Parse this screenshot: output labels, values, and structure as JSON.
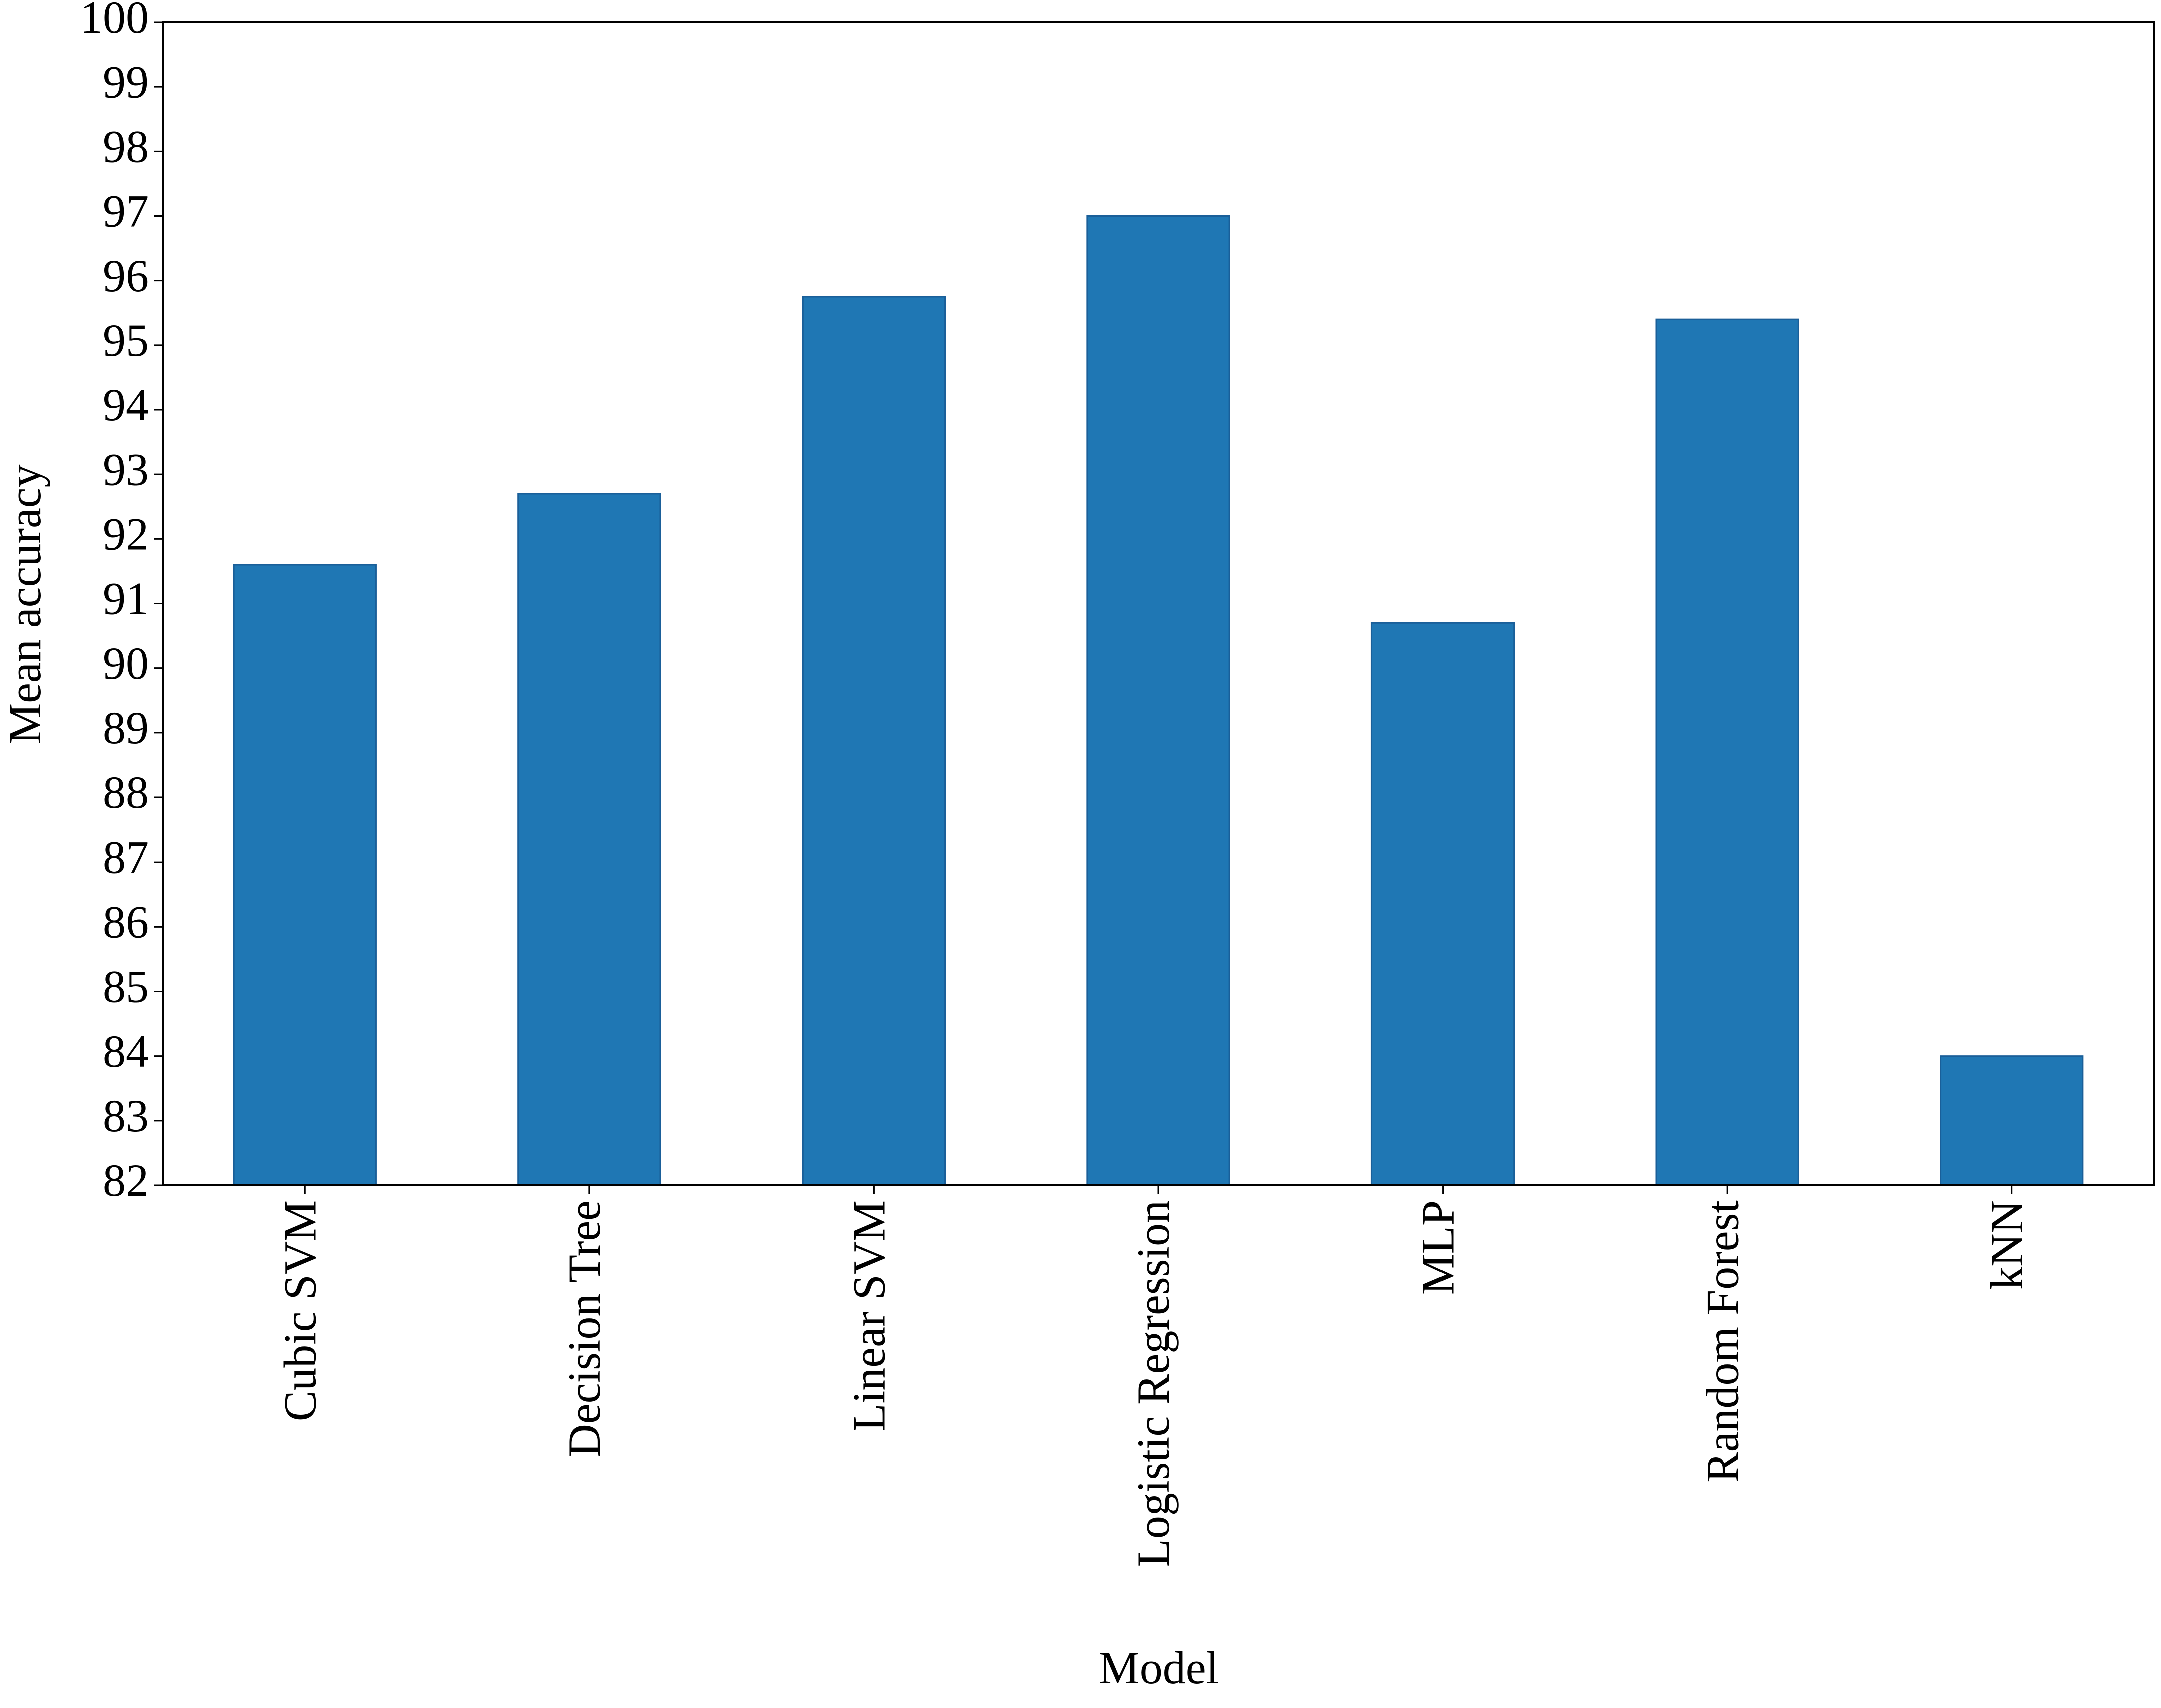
{
  "chart_data": {
    "type": "bar",
    "categories": [
      "Cubic SVM",
      "Decision Tree",
      "Linear SVM",
      "Logistic Regression",
      "MLP",
      "Random Forest",
      "kNN"
    ],
    "values": [
      91.6,
      92.7,
      95.75,
      97.0,
      90.7,
      95.4,
      84.0
    ],
    "color": "#1f77b4",
    "xlabel": "Model",
    "ylabel": "Mean accuracy",
    "ylim": [
      82,
      100
    ],
    "yticks": [
      82,
      83,
      84,
      85,
      86,
      87,
      88,
      89,
      90,
      91,
      92,
      93,
      94,
      95,
      96,
      97,
      98,
      99,
      100
    ]
  }
}
